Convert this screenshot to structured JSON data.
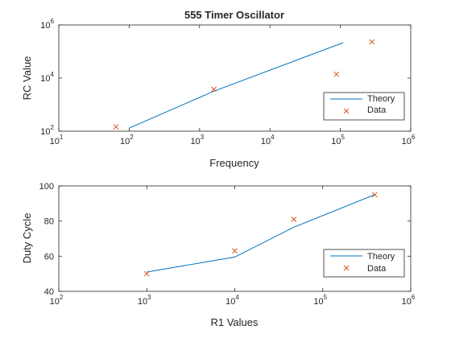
{
  "colors": {
    "theory": "#0072BD",
    "data": "#D95319",
    "axis": "#262626",
    "background": "#ffffff"
  },
  "chart_data": [
    {
      "type": "line",
      "title": "555 Timer Oscillator",
      "xlabel": "Frequency",
      "ylabel": "RC Value",
      "xscale": "log",
      "yscale": "log",
      "xlim": [
        10,
        1000000
      ],
      "ylim": [
        100,
        1000000
      ],
      "xticks": [
        10,
        100,
        1000,
        10000,
        100000,
        1000000
      ],
      "yticks": [
        100,
        10000,
        1000000
      ],
      "xtick_labels": [
        {
          "base": "10",
          "exp": "1"
        },
        {
          "base": "10",
          "exp": "2"
        },
        {
          "base": "10",
          "exp": "3"
        },
        {
          "base": "10",
          "exp": "4"
        },
        {
          "base": "10",
          "exp": "5"
        },
        {
          "base": "10",
          "exp": "6"
        }
      ],
      "ytick_labels": [
        {
          "base": "10",
          "exp": "2"
        },
        {
          "base": "10",
          "exp": "4"
        },
        {
          "base": "10",
          "exp": "6"
        }
      ],
      "grid": false,
      "legend": "bottom-right",
      "series": [
        {
          "name": "Theory",
          "type": "line",
          "x": [
            100,
            1600,
            110000
          ],
          "y": [
            130,
            3200,
            215000
          ]
        },
        {
          "name": "Data",
          "type": "scatter",
          "marker": "x",
          "x": [
            65,
            1600,
            88000,
            280000
          ],
          "y": [
            145,
            3800,
            14000,
            230000
          ]
        }
      ]
    },
    {
      "type": "line",
      "title": "",
      "xlabel": "R1 Values",
      "ylabel": "Duty Cycle",
      "xscale": "log",
      "yscale": "linear",
      "xlim": [
        100,
        1000000
      ],
      "ylim": [
        40,
        100
      ],
      "xticks": [
        100,
        1000,
        10000,
        100000,
        1000000
      ],
      "yticks": [
        40,
        60,
        80,
        100
      ],
      "xtick_labels": [
        {
          "base": "10",
          "exp": "2"
        },
        {
          "base": "10",
          "exp": "3"
        },
        {
          "base": "10",
          "exp": "4"
        },
        {
          "base": "10",
          "exp": "5"
        },
        {
          "base": "10",
          "exp": "6"
        }
      ],
      "ytick_labels": [
        {
          "base": "40",
          "exp": ""
        },
        {
          "base": "60",
          "exp": ""
        },
        {
          "base": "80",
          "exp": ""
        },
        {
          "base": "100",
          "exp": ""
        }
      ],
      "grid": false,
      "legend": "bottom-right",
      "series": [
        {
          "name": "Theory",
          "type": "line",
          "x": [
            1000,
            10000,
            47000,
            390000
          ],
          "y": [
            51,
            59.5,
            76.5,
            95
          ]
        },
        {
          "name": "Data",
          "type": "scatter",
          "marker": "x",
          "x": [
            1000,
            10000,
            47000,
            390000
          ],
          "y": [
            50,
            63,
            81,
            95
          ]
        }
      ]
    }
  ]
}
